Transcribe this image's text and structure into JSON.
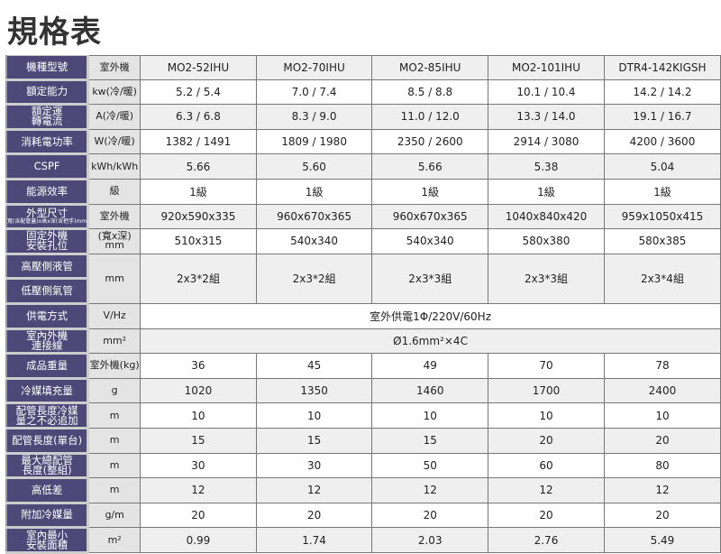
{
  "title": "規格表",
  "models": {
    "label": "機種型號",
    "unit": "室外機",
    "values": [
      "MO2-52IHU",
      "MO2-70IHU",
      "MO2-85IHU",
      "MO2-101IHU",
      "DTR4-142KIGSH"
    ]
  },
  "rows": [
    {
      "label": "額定能力",
      "unit": "kw(冷/暖)",
      "values": [
        "5.2 / 5.4",
        "7.0 / 7.4",
        "8.5 / 8.8",
        "10.1 / 10.4",
        "14.2 / 14.2"
      ]
    },
    {
      "label": "額定運\n轉電流",
      "unit": "A(冷/暖)",
      "values": [
        "6.3 / 6.8",
        "8.3 / 9.0",
        "11.0 / 12.0",
        "13.3 / 14.0",
        "19.1 / 16.7"
      ]
    },
    {
      "label": "消耗電功率",
      "unit": "W(冷/暖)",
      "values": [
        "1382 / 1491",
        "1809 / 1980",
        "2350 / 2600",
        "2914 / 3080",
        "4200 / 3600"
      ]
    },
    {
      "label": "CSPF",
      "unit": "kWh/kWh",
      "values": [
        "5.66",
        "5.60",
        "5.66",
        "5.38",
        "5.04"
      ]
    },
    {
      "label": "能源效率",
      "unit": "級",
      "values": [
        "1級",
        "1級",
        "1級",
        "1級",
        "1級"
      ]
    },
    {
      "label": "外型尺寸",
      "sublabel": "寬(含配管蓋)x高x深(含把手)mm",
      "unit": "室外機",
      "values": [
        "920x590x335",
        "960x670x365",
        "960x670x365",
        "1040x840x420",
        "959x1050x415"
      ]
    },
    {
      "label": "固定外機\n安裝孔位",
      "unit": "(寬x深)\nmm",
      "values": [
        "510x315",
        "540x340",
        "540x340",
        "580x380",
        "580x385"
      ]
    }
  ],
  "pipe": {
    "labels": [
      "高壓側液管",
      "低壓側氣管"
    ],
    "unit": "mm",
    "values": [
      "2x3*2組",
      "2x3*2組",
      "2x3*3組",
      "2x3*3組",
      "2x3*4組"
    ]
  },
  "power": {
    "label": "供電方式",
    "unit": "V/Hz",
    "value": "室外供電1Φ/220V/60Hz"
  },
  "cable": {
    "label": "室內外機\n連接線",
    "unit": "mm²",
    "value": "Ø1.6mm²×4C"
  },
  "rows2": [
    {
      "label": "成品重量",
      "unit": "室外機(kg)",
      "values": [
        "36",
        "45",
        "49",
        "70",
        "78"
      ]
    },
    {
      "label": "冷媒填充量",
      "unit": "g",
      "values": [
        "1020",
        "1350",
        "1460",
        "1700",
        "2400"
      ]
    },
    {
      "label": "配管長度冷媒\n量之不必追加",
      "unit": "m",
      "values": [
        "10",
        "10",
        "10",
        "10",
        "10"
      ]
    },
    {
      "label": "配管長度(單台)",
      "unit": "m",
      "values": [
        "15",
        "15",
        "15",
        "20",
        "20"
      ]
    },
    {
      "label": "最大總配管\n長度(整組)",
      "unit": "m",
      "values": [
        "30",
        "30",
        "50",
        "60",
        "80"
      ]
    },
    {
      "label": "高低差",
      "unit": "m",
      "values": [
        "12",
        "12",
        "12",
        "12",
        "12"
      ]
    },
    {
      "label": "附加冷媒量",
      "unit": "g/m",
      "values": [
        "20",
        "20",
        "20",
        "20",
        "20"
      ]
    },
    {
      "label": "室內最小\n安裝面積",
      "unit": "m²",
      "values": [
        "0.99",
        "1.74",
        "2.03",
        "2.76",
        "5.49"
      ]
    }
  ]
}
